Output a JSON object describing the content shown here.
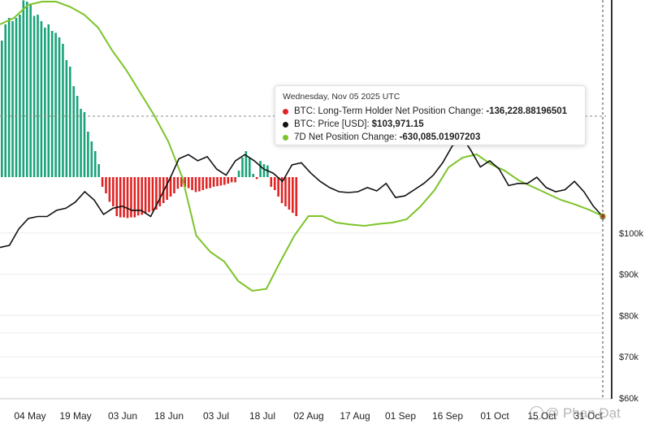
{
  "chart_data": {
    "type": "bar+line",
    "title": "",
    "x_ticks": [
      "04 May",
      "19 May",
      "03 Jun",
      "18 Jun",
      "03 Jul",
      "18 Jul",
      "02 Aug",
      "17 Aug",
      "01 Sep",
      "16 Sep",
      "01 Oct",
      "15 Oct",
      "31 Oct"
    ],
    "y_right": {
      "ticks": [
        "$60k",
        "$70k",
        "$80k",
        "$90k",
        "$100k"
      ],
      "tick_values": [
        60000,
        70000,
        80000,
        90000,
        100000
      ],
      "range": [
        60000,
        126000
      ]
    },
    "colors": {
      "positive_bar": "#1aa37a",
      "negative_bar": "#e02424",
      "price": "#111111",
      "seven_day": "#7dc42a"
    },
    "series": [
      {
        "name": "BTC: Long-Term Holder Net Position Change",
        "kind": "bar",
        "values": [
          210,
          235,
          245,
          240,
          245,
          250,
          272,
          270,
          265,
          248,
          250,
          240,
          230,
          235,
          225,
          222,
          215,
          205,
          180,
          170,
          140,
          125,
          105,
          100,
          70,
          55,
          40,
          20,
          -15,
          -25,
          -38,
          -45,
          -60,
          -62,
          -62,
          -63,
          -62,
          -62,
          -59,
          -58,
          -56,
          -54,
          -52,
          -50,
          -45,
          -40,
          -35,
          -30,
          -25,
          -18,
          -15,
          -15,
          -17,
          -20,
          -23,
          -22,
          -20,
          -18,
          -17,
          -15,
          -14,
          -13,
          -12,
          -10,
          -8,
          -8,
          10,
          30,
          40,
          30,
          5,
          -3,
          25,
          20,
          18,
          -15,
          -20,
          -30,
          -40,
          -45,
          -50,
          -55,
          -60
        ]
      },
      {
        "name": "BTC: Price [USD]",
        "kind": "line",
        "values": [
          96500,
          97000,
          101000,
          103500,
          104000,
          104000,
          105500,
          106000,
          107500,
          110000,
          108000,
          104500,
          106000,
          106500,
          105500,
          105500,
          104000,
          108500,
          113000,
          118000,
          119000,
          117500,
          118500,
          115500,
          114000,
          117500,
          119000,
          117500,
          115500,
          114500,
          112500,
          116500,
          117000,
          114500,
          112500,
          111000,
          110000,
          109800,
          110000,
          111000,
          110200,
          112000,
          108600,
          109000,
          110500,
          112000,
          114000,
          117000,
          121000,
          123500,
          120000,
          116000,
          117500,
          115500,
          111500,
          112000,
          112000,
          113500,
          111000,
          110000,
          110500,
          112500,
          110000,
          106500,
          103971
        ]
      },
      {
        "name": "7D Net Position Change",
        "kind": "line",
        "values": [
          235,
          245,
          265,
          270,
          270,
          262,
          250,
          230,
          195,
          165,
          130,
          95,
          55,
          0,
          -90,
          -115,
          -130,
          -160,
          -175,
          -172,
          -130,
          -90,
          -60,
          -60,
          -70,
          -73,
          -75,
          -72,
          -70,
          -65,
          -45,
          -20,
          15,
          30,
          35,
          20,
          10,
          -5,
          -15,
          -25,
          -35,
          -42,
          -50,
          -60
        ]
      }
    ],
    "tooltip": {
      "date": "Wednesday, Nov 05 2025 UTC",
      "rows": [
        {
          "label": "BTC: Long-Term Holder Net Position Change:",
          "value": "-136,228.88196501",
          "color": "#e02424"
        },
        {
          "label": "BTC: Price [USD]:",
          "value": "$103,971.15",
          "color": "#111111"
        },
        {
          "label": "7D Net Position Change:",
          "value": "-630,085.01907203",
          "color": "#7dc42a"
        }
      ]
    },
    "grid": true,
    "legend": "none"
  },
  "watermark": "@ Phan Đạt"
}
